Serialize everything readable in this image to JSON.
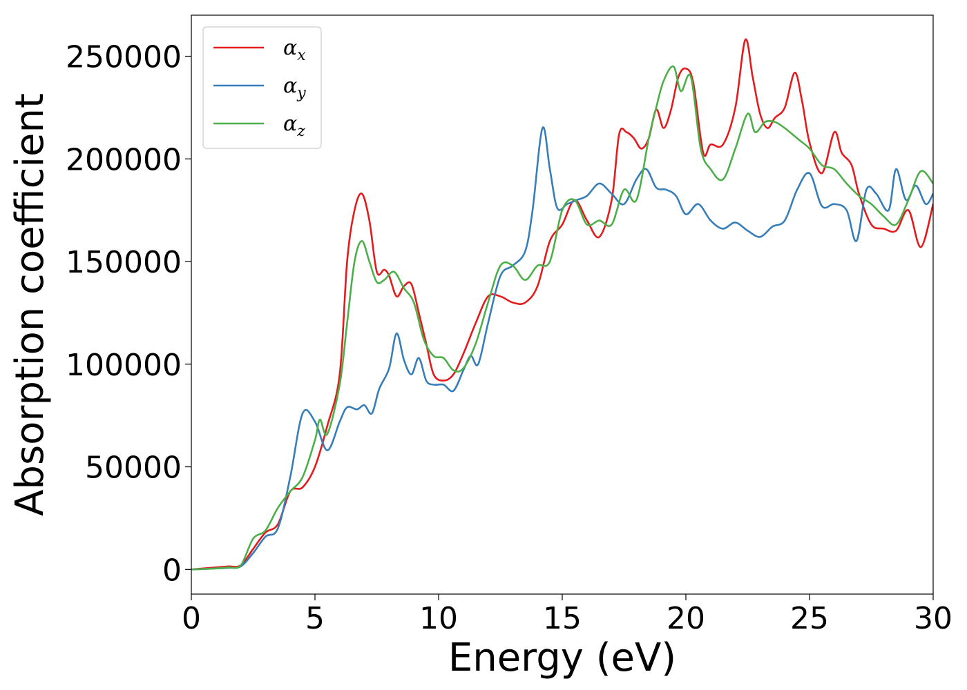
{
  "chart_data": {
    "type": "line",
    "xlabel": "Energy (eV)",
    "ylabel": "Absorption coefficient",
    "xlim": [
      0,
      30
    ],
    "ylim": [
      -12000,
      270000
    ],
    "xticks": [
      0,
      5,
      10,
      15,
      20,
      25,
      30
    ],
    "yticks": [
      0,
      50000,
      100000,
      150000,
      200000,
      250000
    ],
    "grid": false,
    "legend_position": "top-left",
    "series": [
      {
        "name": "αx",
        "legend_base": "α",
        "legend_sub": "x",
        "color": "#e41a1c",
        "x": [
          0,
          1,
          1.5,
          2,
          2.5,
          3,
          3.5,
          4,
          4.5,
          5,
          5.5,
          6,
          6.3,
          6.6,
          6.9,
          7.2,
          7.5,
          7.8,
          8,
          8.3,
          8.6,
          8.9,
          9.2,
          9.5,
          9.8,
          10.2,
          10.6,
          11,
          11.5,
          12,
          12.5,
          13,
          13.5,
          14,
          14.5,
          15,
          15.5,
          16,
          16.5,
          17,
          17.3,
          17.6,
          17.9,
          18.2,
          18.5,
          18.8,
          19.1,
          19.4,
          19.7,
          20,
          20.3,
          20.7,
          21,
          21.5,
          22,
          22.4,
          22.7,
          23,
          23.3,
          23.6,
          24,
          24.4,
          24.7,
          25,
          25.5,
          26,
          26.3,
          26.7,
          27,
          27.5,
          28,
          28.5,
          29,
          29.5,
          30
        ],
        "y": [
          0,
          1000,
          1500,
          2000,
          10000,
          18000,
          22000,
          38000,
          40000,
          50000,
          70000,
          95000,
          150000,
          175000,
          183000,
          170000,
          145000,
          146000,
          143000,
          133000,
          138000,
          139000,
          125000,
          110000,
          95000,
          92000,
          95000,
          105000,
          120000,
          133000,
          133000,
          130000,
          130000,
          138000,
          160000,
          168000,
          180000,
          170000,
          162000,
          180000,
          212000,
          213000,
          210000,
          205000,
          210000,
          224000,
          215000,
          224000,
          240000,
          244000,
          237000,
          203000,
          207000,
          207000,
          225000,
          258000,
          240000,
          222000,
          215000,
          220000,
          225000,
          242000,
          228000,
          208000,
          193000,
          213000,
          203000,
          197000,
          183000,
          168000,
          166000,
          165000,
          175000,
          157000,
          178000
        ]
      },
      {
        "name": "αy",
        "legend_base": "α",
        "legend_sub": "y",
        "color": "#377eb8",
        "x": [
          0,
          1,
          1.5,
          2,
          2.5,
          3,
          3.5,
          4,
          4.5,
          5,
          5.5,
          6,
          6.3,
          6.7,
          7,
          7.3,
          7.6,
          8,
          8.3,
          8.6,
          8.9,
          9.2,
          9.5,
          9.8,
          10.2,
          10.6,
          11,
          11.3,
          11.6,
          12,
          12.5,
          13,
          13.5,
          13.8,
          14.2,
          14.5,
          14.8,
          15.2,
          15.6,
          16,
          16.5,
          17,
          17.5,
          18,
          18.4,
          18.8,
          19.2,
          19.6,
          20,
          20.5,
          21,
          21.5,
          22,
          22.5,
          23,
          23.5,
          24,
          24.5,
          25,
          25.5,
          26,
          26.5,
          26.9,
          27.3,
          27.7,
          28.2,
          28.5,
          28.9,
          29.3,
          29.7,
          30
        ],
        "y": [
          0,
          500,
          800,
          1500,
          8000,
          16000,
          20000,
          45000,
          76000,
          72000,
          58000,
          72000,
          79000,
          78000,
          80000,
          76000,
          88000,
          98000,
          115000,
          102000,
          95000,
          103000,
          92000,
          90000,
          90000,
          87000,
          97000,
          104000,
          100000,
          120000,
          143000,
          148000,
          155000,
          175000,
          215000,
          195000,
          176000,
          178000,
          180000,
          182000,
          188000,
          183000,
          178000,
          190000,
          195000,
          186000,
          185000,
          182000,
          173000,
          178000,
          170000,
          166000,
          169000,
          165000,
          162000,
          167000,
          170000,
          185000,
          193000,
          177000,
          178000,
          175000,
          160000,
          185000,
          183000,
          175000,
          195000,
          180000,
          187000,
          178000,
          183000
        ]
      },
      {
        "name": "αz",
        "legend_base": "α",
        "legend_sub": "z",
        "color": "#4daf4a",
        "x": [
          0,
          1,
          1.5,
          2,
          2.5,
          3,
          3.5,
          4,
          4.5,
          5,
          5.2,
          5.5,
          6,
          6.3,
          6.6,
          6.9,
          7.2,
          7.5,
          7.8,
          8.2,
          8.6,
          9,
          9.4,
          9.8,
          10.2,
          10.6,
          11,
          11.5,
          12,
          12.5,
          13,
          13.5,
          14,
          14.5,
          15,
          15.5,
          16,
          16.5,
          17,
          17.5,
          18,
          18.5,
          18.8,
          19.1,
          19.5,
          19.8,
          20.2,
          20.6,
          21,
          21.5,
          22,
          22.5,
          22.8,
          23.2,
          23.6,
          24,
          24.5,
          25,
          25.5,
          26,
          26.5,
          27,
          27.5,
          28,
          28.5,
          29,
          29.5,
          30
        ],
        "y": [
          0,
          500,
          1000,
          2000,
          15000,
          19000,
          30000,
          38000,
          45000,
          63000,
          73000,
          66000,
          90000,
          120000,
          150000,
          160000,
          150000,
          140000,
          141000,
          145000,
          137000,
          130000,
          112000,
          104000,
          103000,
          97000,
          98000,
          110000,
          130000,
          148000,
          148000,
          141000,
          148000,
          150000,
          175000,
          180000,
          168000,
          170000,
          168000,
          185000,
          180000,
          210000,
          225000,
          238000,
          245000,
          233000,
          240000,
          205000,
          195000,
          190000,
          205000,
          222000,
          213000,
          218000,
          218000,
          215000,
          210000,
          205000,
          197000,
          195000,
          188000,
          182000,
          178000,
          172000,
          168000,
          180000,
          194000,
          188000
        ]
      }
    ]
  }
}
